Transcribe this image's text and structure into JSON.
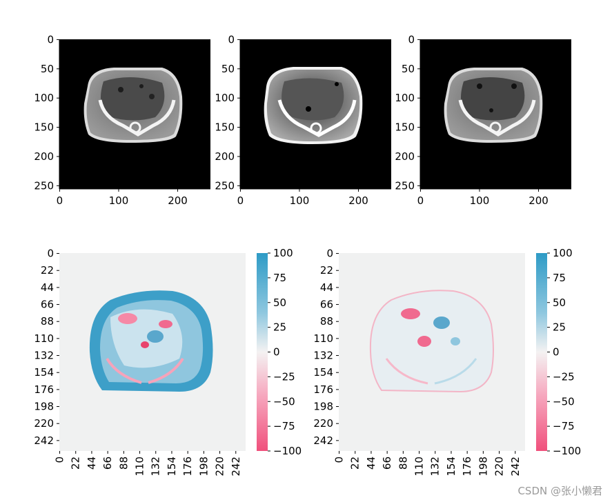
{
  "watermark": "CSDN @张小懒君",
  "chart_data": [
    {
      "type": "heatmap",
      "content": "CT slice (grayscale)",
      "xticks": [
        "0",
        "100",
        "200"
      ],
      "yticks": [
        "0",
        "50",
        "100",
        "150",
        "200",
        "250"
      ],
      "xlim": [
        0,
        256
      ],
      "ylim": [
        256,
        0
      ]
    },
    {
      "type": "heatmap",
      "content": "CT slice (grayscale, high contrast)",
      "xticks": [
        "0",
        "100",
        "200"
      ],
      "yticks": [
        "0",
        "50",
        "100",
        "150",
        "200",
        "250"
      ],
      "xlim": [
        0,
        256
      ],
      "ylim": [
        256,
        0
      ]
    },
    {
      "type": "heatmap",
      "content": "CT slice (grayscale)",
      "xticks": [
        "0",
        "100",
        "200"
      ],
      "yticks": [
        "0",
        "50",
        "100",
        "150",
        "200",
        "250"
      ],
      "xlim": [
        0,
        256
      ],
      "ylim": [
        256,
        0
      ]
    },
    {
      "type": "heatmap",
      "content": "difference map",
      "xticks": [
        "0",
        "22",
        "44",
        "66",
        "88",
        "110",
        "132",
        "154",
        "176",
        "198",
        "220",
        "242"
      ],
      "yticks": [
        "0",
        "22",
        "44",
        "66",
        "88",
        "110",
        "132",
        "154",
        "176",
        "198",
        "220",
        "242"
      ],
      "colorbar": {
        "ticks": [
          "100",
          "75",
          "50",
          "25",
          "0",
          "−25",
          "−50",
          "−75",
          "−100"
        ],
        "vmin": -100,
        "vmax": 100
      },
      "colors": {
        "positive": "#2e9bc6",
        "zero": "#f1f1f1",
        "negative": "#f0507c"
      }
    },
    {
      "type": "heatmap",
      "content": "difference map",
      "xticks": [
        "0",
        "22",
        "44",
        "66",
        "88",
        "110",
        "132",
        "154",
        "176",
        "198",
        "220",
        "242"
      ],
      "yticks": [
        "0",
        "22",
        "44",
        "66",
        "88",
        "110",
        "132",
        "154",
        "176",
        "198",
        "220",
        "242"
      ],
      "colorbar": {
        "ticks": [
          "100",
          "75",
          "50",
          "25",
          "0",
          "−25",
          "−50",
          "−75",
          "−100"
        ],
        "vmin": -100,
        "vmax": 100
      },
      "colors": {
        "positive": "#2e9bc6",
        "zero": "#f1f1f1",
        "negative": "#f0507c"
      }
    }
  ]
}
